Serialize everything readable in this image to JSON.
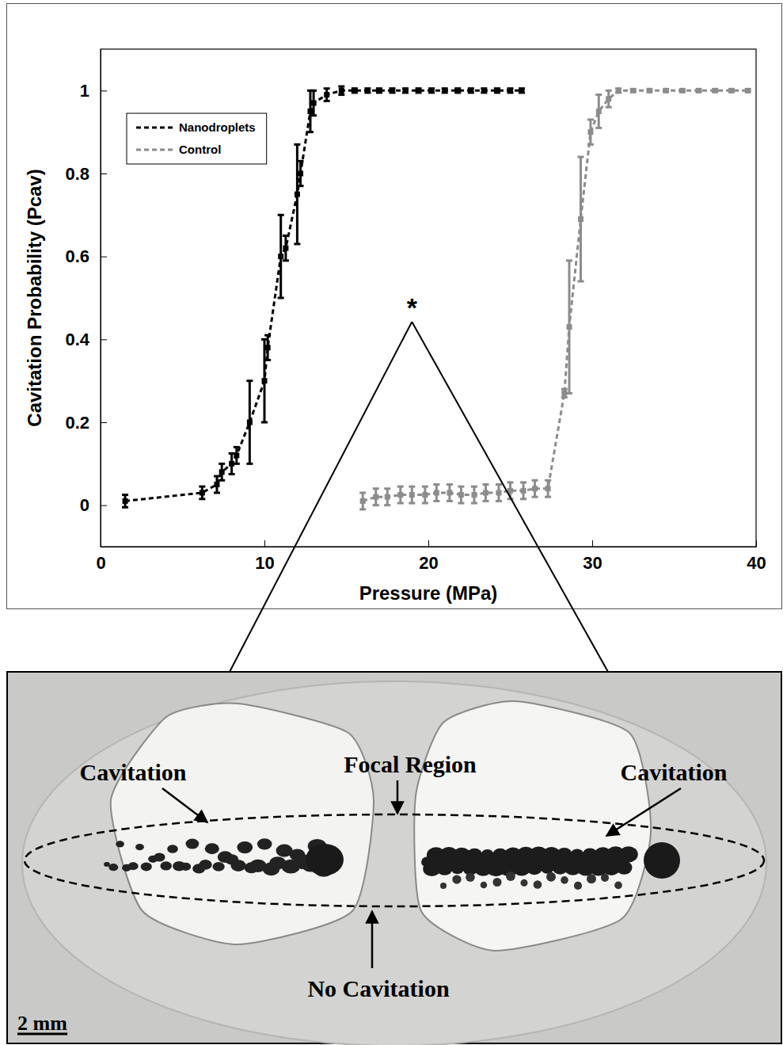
{
  "chart_data": {
    "type": "line",
    "xlabel": "Pressure (MPa)",
    "ylabel": "Cavitation Probability (Pcav)",
    "xlim": [
      0,
      40
    ],
    "xticks": [
      0,
      10,
      20,
      30,
      40
    ],
    "ylim": [
      -0.1,
      1.1
    ],
    "yticks": [
      0,
      0.2,
      0.4,
      0.6,
      0.8,
      1
    ],
    "legend": "upper left",
    "series": [
      {
        "name": "Nanodroplets",
        "color": "#000000",
        "line_style": "dashed",
        "marker": "square",
        "x": [
          1.5,
          6.2,
          7.1,
          7.4,
          8.0,
          8.3,
          9.1,
          10.0,
          10.2,
          11.0,
          11.3,
          12.0,
          12.2,
          12.8,
          13.0,
          13.8,
          14.7,
          15.5,
          16.3,
          17.0,
          17.8,
          18.6,
          19.4,
          20.2,
          21.0,
          21.8,
          22.6,
          23.4,
          24.2,
          25.0,
          25.7
        ],
        "values": [
          0.01,
          0.03,
          0.05,
          0.08,
          0.1,
          0.12,
          0.2,
          0.3,
          0.38,
          0.6,
          0.62,
          0.75,
          0.8,
          0.95,
          0.97,
          0.99,
          1,
          1,
          1,
          1,
          1,
          1,
          1,
          1,
          1,
          1,
          1,
          1,
          1,
          1,
          1
        ],
        "errors": [
          0.015,
          0.015,
          0.02,
          0.02,
          0.025,
          0.02,
          0.1,
          0.1,
          0.03,
          0.1,
          0.03,
          0.12,
          0.03,
          0.05,
          0.03,
          0.015,
          0.01,
          0.005,
          0.005,
          0.005,
          0.005,
          0.005,
          0.005,
          0.005,
          0.005,
          0.005,
          0.005,
          0.005,
          0.005,
          0.005,
          0.005
        ]
      },
      {
        "name": "Control",
        "color": "#8c8c8c",
        "line_style": "dashed",
        "marker": "square",
        "x": [
          16.0,
          16.8,
          17.5,
          18.3,
          19.0,
          19.8,
          20.5,
          21.3,
          22.0,
          22.8,
          23.5,
          24.3,
          25.0,
          25.8,
          26.5,
          27.3,
          28.3,
          28.6,
          29.3,
          29.9,
          30.4,
          31.0,
          31.6,
          32.5,
          33.5,
          34.5,
          35.5,
          36.5,
          37.5,
          38.5,
          39.5
        ],
        "values": [
          0.01,
          0.02,
          0.02,
          0.025,
          0.025,
          0.025,
          0.03,
          0.03,
          0.025,
          0.025,
          0.03,
          0.03,
          0.035,
          0.035,
          0.04,
          0.04,
          0.27,
          0.43,
          0.69,
          0.9,
          0.95,
          0.98,
          1,
          1,
          1,
          1,
          1,
          1,
          1,
          1,
          1
        ],
        "errors": [
          0.02,
          0.02,
          0.02,
          0.02,
          0.02,
          0.02,
          0.02,
          0.02,
          0.02,
          0.02,
          0.02,
          0.02,
          0.02,
          0.02,
          0.02,
          0.02,
          0.01,
          0.16,
          0.15,
          0.03,
          0.04,
          0.02,
          0.005,
          0.003,
          0.003,
          0.003,
          0.003,
          0.003,
          0.003,
          0.003,
          0.003
        ]
      }
    ],
    "annotations": [
      {
        "text": "*",
        "x": 19.0,
        "y": 0.45
      }
    ]
  },
  "inset": {
    "labels": [
      {
        "text": "Cavitation"
      },
      {
        "text": "Focal Region"
      },
      {
        "text": "Cavitation"
      },
      {
        "text": "No Cavitation"
      }
    ],
    "scale_bar": "2 mm"
  }
}
